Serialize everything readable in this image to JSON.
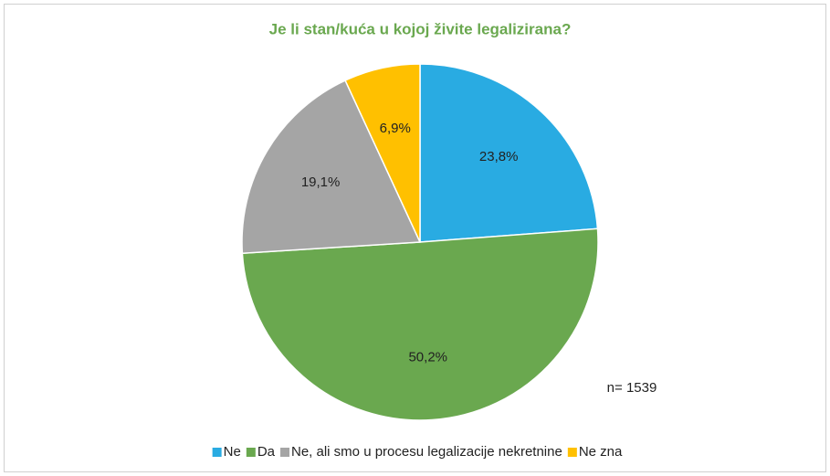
{
  "chart_data": {
    "type": "pie",
    "title": "Je li stan/kuća u kojoj živite legalizirana?",
    "categories": [
      "Ne",
      "Da",
      "Ne, ali smo u procesu legalizacije nekretnine",
      "Ne zna"
    ],
    "values": [
      23.8,
      50.2,
      19.1,
      6.9
    ],
    "value_labels": [
      "23,8%",
      "50,2%",
      "19,1%",
      "6,9%"
    ],
    "colors": [
      "#29abe2",
      "#6aa84f",
      "#a5a5a5",
      "#ffc000"
    ],
    "annotation": "n= 1539",
    "legend": "bottom"
  }
}
